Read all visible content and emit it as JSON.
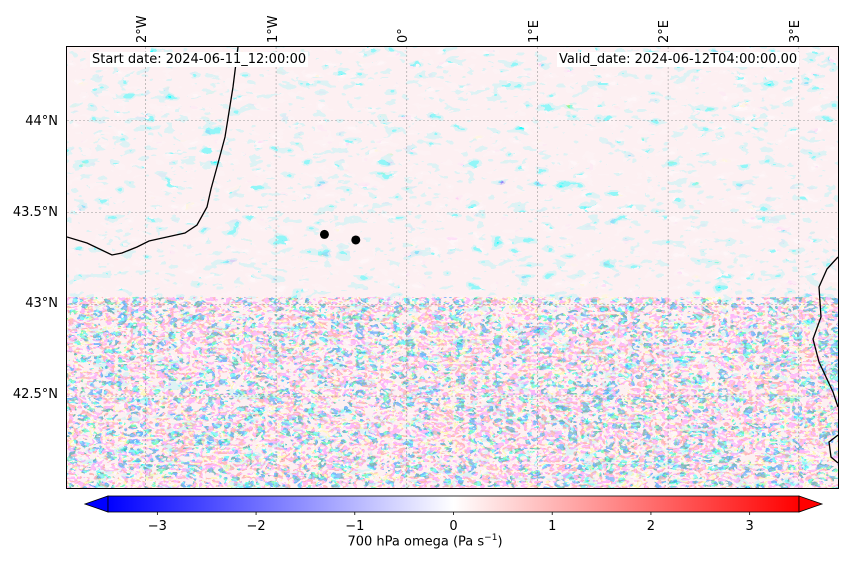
{
  "map": {
    "start_date": "Start date: 2024-06-11_12:00:00",
    "valid_date": "Valid_date: 2024-06-12T04:00:00.00",
    "lon_labels": [
      "2°W",
      "1°W",
      "0°",
      "1°E",
      "2°E",
      "3°E"
    ],
    "lat_labels": [
      "44°N",
      "43.5°N",
      "43°N",
      "42.5°N"
    ],
    "variable": "700 hPa omega",
    "colormap": "bwr",
    "extent": {
      "lon": [
        -2.6,
        3.3
      ],
      "lat": [
        42.0,
        44.4
      ]
    },
    "markers": [
      {
        "lon": -0.63,
        "lat": 43.38,
        "color": "#000000"
      },
      {
        "lon": -0.39,
        "lat": 43.35,
        "color": "#000000"
      }
    ]
  },
  "colorbar": {
    "label": "700 hPa omega (Pa s",
    "label_sup": "−1",
    "label_end": ")",
    "ticks": [
      "−3",
      "−2",
      "−1",
      "0",
      "1",
      "2",
      "3"
    ],
    "tick_values": [
      -3,
      -2,
      -1,
      0,
      1,
      2,
      3
    ],
    "range": [
      -3.5,
      3.5
    ],
    "extend": "both",
    "colors": {
      "low": "#0000ff",
      "mid": "#ffffff",
      "high": "#ff0000"
    }
  }
}
